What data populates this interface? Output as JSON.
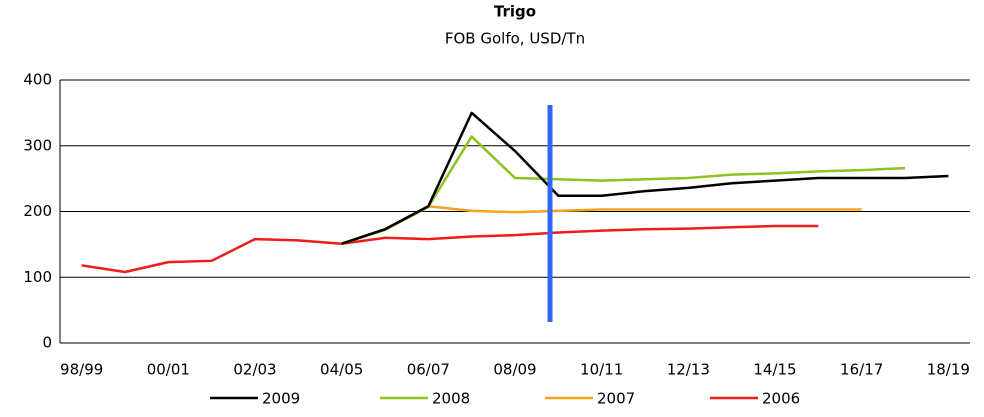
{
  "chart_data": {
    "type": "line",
    "title": "Trigo",
    "subtitle": "FOB Golfo, USD/Tn",
    "categories": [
      "98/99",
      null,
      "00/01",
      null,
      "02/03",
      null,
      "04/05",
      null,
      "06/07",
      null,
      "08/09",
      null,
      "10/11",
      null,
      "12/13",
      null,
      "14/15",
      null,
      "16/17",
      null,
      "18/19"
    ],
    "series": [
      {
        "name": "2009",
        "color": "#000000",
        "values": [
          null,
          null,
          null,
          null,
          null,
          null,
          151,
          173,
          208,
          350,
          292,
          224,
          224,
          231,
          236,
          243,
          247,
          251,
          251,
          251,
          254
        ]
      },
      {
        "name": "2008",
        "color": "#8dc21f",
        "values": [
          null,
          null,
          null,
          null,
          null,
          null,
          151,
          172,
          207,
          314,
          251,
          249,
          247,
          249,
          251,
          256,
          258,
          261,
          263,
          266,
          null
        ]
      },
      {
        "name": "2007",
        "color": "#f7a21b",
        "values": [
          null,
          null,
          null,
          null,
          null,
          null,
          151,
          173,
          208,
          201,
          199,
          201,
          203,
          203,
          203,
          203,
          203,
          203,
          203,
          null,
          null
        ]
      },
      {
        "name": "2006",
        "color": "#ee1c1c",
        "values": [
          118,
          108,
          123,
          125,
          158,
          156,
          151,
          160,
          158,
          162,
          164,
          168,
          171,
          173,
          174,
          176,
          178,
          178,
          null,
          null,
          null
        ]
      }
    ],
    "ylim": [
      0,
      400
    ],
    "yticks": [
      0,
      100,
      200,
      300,
      400
    ],
    "grid": true,
    "legend": "bottom"
  }
}
